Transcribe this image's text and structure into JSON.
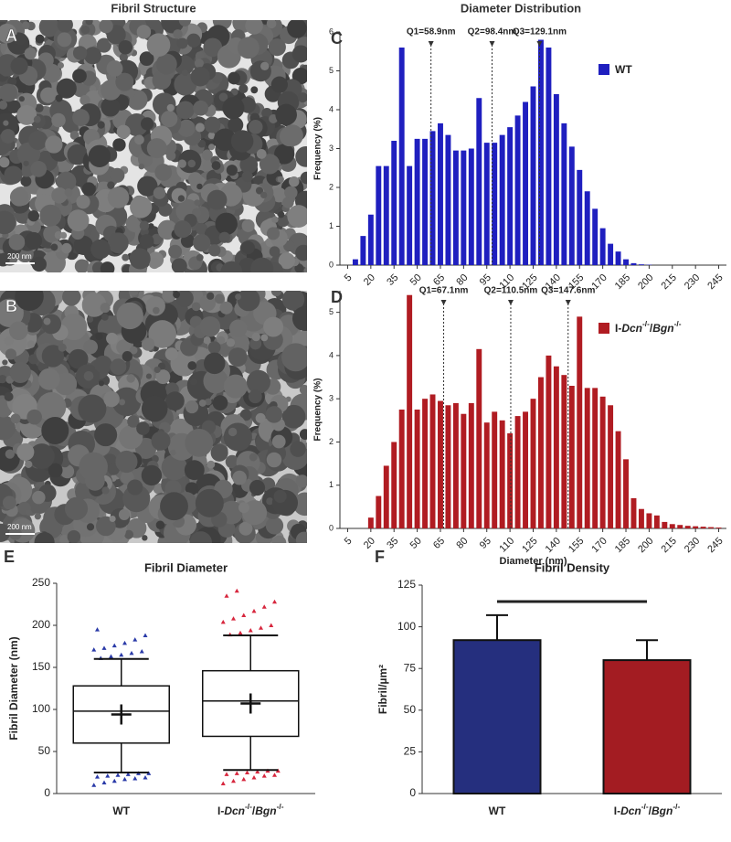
{
  "headers": {
    "left": "Fibril Structure",
    "right": "Diameter Distribution"
  },
  "images": [
    {
      "panel": "A",
      "scale_bar": "200 nm"
    },
    {
      "panel": "B",
      "scale_bar": "200 nm"
    }
  ],
  "chart_data": [
    {
      "type": "histogram",
      "panel": "C",
      "ylabel": "Frequency (%)",
      "x": [
        5,
        10,
        15,
        20,
        25,
        30,
        35,
        40,
        45,
        50,
        55,
        60,
        65,
        70,
        75,
        80,
        85,
        90,
        95,
        100,
        105,
        110,
        115,
        120,
        125,
        130,
        135,
        140,
        145,
        150,
        155,
        160,
        165,
        170,
        175,
        180,
        185,
        190,
        195,
        200,
        205,
        210,
        215,
        220,
        225,
        230,
        235,
        240,
        245
      ],
      "series": [
        {
          "name": "WT",
          "color": "#1f1fbf",
          "values": [
            0,
            0.15,
            0.75,
            1.3,
            2.55,
            2.55,
            3.2,
            5.6,
            2.55,
            3.25,
            3.25,
            3.45,
            3.65,
            3.35,
            2.95,
            2.95,
            3.0,
            4.3,
            3.15,
            3.15,
            3.35,
            3.55,
            3.85,
            4.2,
            4.6,
            5.8,
            5.6,
            4.4,
            3.65,
            3.05,
            2.45,
            1.9,
            1.45,
            0.95,
            0.55,
            0.35,
            0.15,
            0.05,
            0.02,
            0.01,
            0,
            0,
            0,
            0,
            0,
            0,
            0,
            0,
            0
          ]
        }
      ],
      "quartiles": [
        {
          "value": 58.9,
          "label": "Q1=58.9nm"
        },
        {
          "value": 98.4,
          "label": "Q2=98.4nm"
        },
        {
          "value": 129.1,
          "label": "Q3=129.1nm"
        }
      ],
      "xlim": [
        0,
        250
      ],
      "xticks": [
        5,
        20,
        35,
        50,
        65,
        80,
        95,
        110,
        125,
        140,
        155,
        170,
        185,
        200,
        215,
        230,
        245
      ],
      "ylim": [
        0,
        6
      ],
      "yticks": [
        0,
        1,
        2,
        3,
        4,
        5,
        6
      ],
      "legend": "right"
    },
    {
      "type": "histogram",
      "panel": "D",
      "ylabel": "Frequency (%)",
      "xlabel": "Diameter (nm)",
      "x": [
        5,
        10,
        15,
        20,
        25,
        30,
        35,
        40,
        45,
        50,
        55,
        60,
        65,
        70,
        75,
        80,
        85,
        90,
        95,
        100,
        105,
        110,
        115,
        120,
        125,
        130,
        135,
        140,
        145,
        150,
        155,
        160,
        165,
        170,
        175,
        180,
        185,
        190,
        195,
        200,
        205,
        210,
        215,
        220,
        225,
        230,
        235,
        240,
        245
      ],
      "series": [
        {
          "name": "I-Dcn-/-/Bgn-/-",
          "color": "#b01c22",
          "values": [
            0,
            0,
            0,
            0.25,
            0.75,
            1.45,
            2.0,
            2.75,
            5.4,
            2.75,
            3.0,
            3.1,
            2.95,
            2.85,
            2.9,
            2.65,
            2.9,
            4.15,
            2.45,
            2.7,
            2.5,
            2.2,
            2.6,
            2.7,
            3.0,
            3.5,
            4.0,
            3.75,
            3.55,
            3.3,
            4.9,
            3.25,
            3.25,
            3.05,
            2.85,
            2.25,
            1.6,
            0.7,
            0.45,
            0.35,
            0.3,
            0.15,
            0.1,
            0.08,
            0.06,
            0.05,
            0.04,
            0.03,
            0.02
          ]
        }
      ],
      "quartiles": [
        {
          "value": 67.1,
          "label": "Q1=67.1nm"
        },
        {
          "value": 110.5,
          "label": "Q2=110.5nm"
        },
        {
          "value": 147.6,
          "label": "Q3=147.6nm"
        }
      ],
      "xlim": [
        0,
        250
      ],
      "xticks": [
        5,
        20,
        35,
        50,
        65,
        80,
        95,
        110,
        125,
        140,
        155,
        170,
        185,
        200,
        215,
        230,
        245
      ],
      "ylim": [
        0,
        5.5
      ],
      "yticks": [
        0,
        1,
        2,
        3,
        4,
        5
      ],
      "legend": "right"
    },
    {
      "type": "box",
      "panel": "E",
      "title": "Fibril Diameter",
      "ylabel": "Fibril Diameter (nm)",
      "categories": [
        "WT",
        "I-Dcn-/-/Bgn-/-"
      ],
      "colors": [
        "#2a3aa8",
        "#d7263d"
      ],
      "boxes": [
        {
          "whislo": 25,
          "q1": 60,
          "med": 98,
          "q3": 128,
          "whishi": 160,
          "mean": 94,
          "outliers": [
            10,
            13,
            15,
            17,
            18,
            19,
            20,
            21,
            22,
            23,
            24,
            24,
            161,
            163,
            165,
            167,
            169,
            171,
            173,
            176,
            179,
            183,
            188,
            195
          ]
        },
        {
          "whislo": 28,
          "q1": 68,
          "med": 110,
          "q3": 146,
          "whishi": 188,
          "mean": 107,
          "outliers": [
            12,
            15,
            17,
            19,
            21,
            22,
            23,
            24,
            25,
            26,
            27,
            27,
            189,
            191,
            194,
            197,
            200,
            204,
            208,
            212,
            217,
            222,
            228,
            235,
            241
          ]
        }
      ],
      "ylim": [
        0,
        250
      ],
      "yticks": [
        0,
        50,
        100,
        150,
        200,
        250
      ]
    },
    {
      "type": "bar",
      "panel": "F",
      "title": "Fibril Density",
      "ylabel": "Fibril/µm²",
      "categories": [
        "WT",
        "I-Dcn-/-/Bgn-/-"
      ],
      "colors": [
        "#252f7e",
        "#a31c22"
      ],
      "values": [
        92,
        80
      ],
      "errors": [
        15,
        12
      ],
      "ylim": [
        0,
        125
      ],
      "yticks": [
        0,
        25,
        50,
        75,
        100,
        125
      ]
    }
  ]
}
